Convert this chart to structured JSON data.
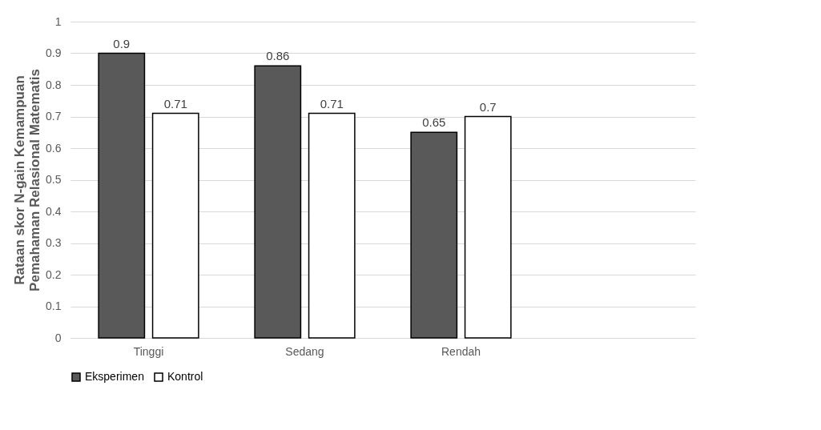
{
  "chart_data": {
    "type": "bar",
    "ylabel": "Rataan skor N-gain Kemampuan Pemahaman Relasional Matematis",
    "categories": [
      "Tinggi",
      "Sedang",
      "Rendah",
      null
    ],
    "series": [
      {
        "name": "Eksperimen",
        "color": "#595959",
        "values": [
          0.9,
          0.86,
          0.65,
          null
        ]
      },
      {
        "name": "Kontrol",
        "color": "#ffffff",
        "values": [
          0.71,
          0.71,
          0.7,
          null
        ]
      }
    ],
    "ylim": [
      0,
      1
    ],
    "yticks": [
      0,
      0.1,
      0.2,
      0.3,
      0.4,
      0.5,
      0.6,
      0.7,
      0.8,
      0.9,
      1
    ],
    "grid": "y",
    "legend": "bottom",
    "data_labels": true
  }
}
